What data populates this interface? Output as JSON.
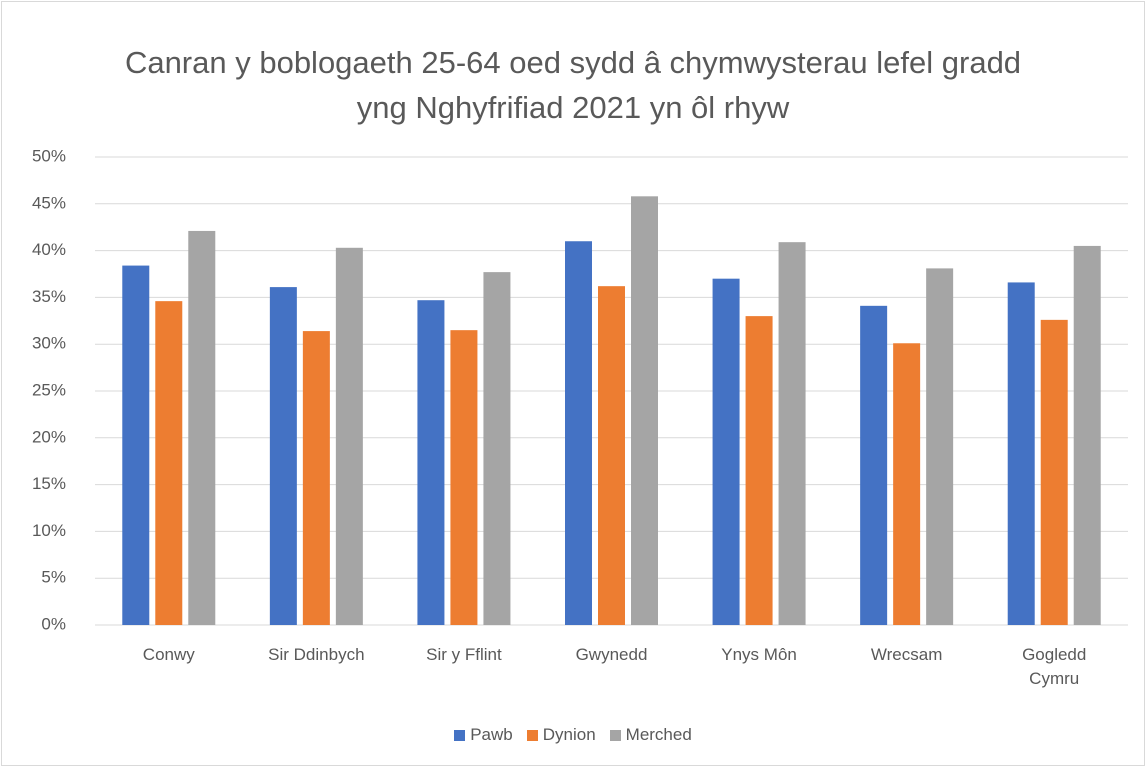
{
  "chart_data": {
    "type": "bar",
    "title": "Canran y boblogaeth 25-64 oed sydd â chymwysterau lefel gradd yng Nghyfrifiad 2021 yn ôl rhyw",
    "categories": [
      "Conwy",
      "Sir Ddinbych",
      "Sir y Fflint",
      "Gwynedd",
      "Ynys Môn",
      "Wrecsam",
      "Gogledd Cymru"
    ],
    "series": [
      {
        "name": "Pawb",
        "color": "#4472c4",
        "values": [
          38.4,
          36.1,
          34.7,
          41.0,
          37.0,
          34.1,
          36.6
        ]
      },
      {
        "name": "Dynion",
        "color": "#ed7d31",
        "values": [
          34.6,
          31.4,
          31.5,
          36.2,
          33.0,
          30.1,
          32.6
        ]
      },
      {
        "name": "Merched",
        "color": "#a5a5a5",
        "values": [
          42.1,
          40.3,
          37.7,
          45.8,
          40.9,
          38.1,
          40.5
        ]
      }
    ],
    "ylim": [
      0,
      50
    ],
    "yticks": [
      {
        "value": 0,
        "label": "0%"
      },
      {
        "value": 5,
        "label": "5%"
      },
      {
        "value": 10,
        "label": "10%"
      },
      {
        "value": 15,
        "label": "15%"
      },
      {
        "value": 20,
        "label": "20%"
      },
      {
        "value": 25,
        "label": "25%"
      },
      {
        "value": 30,
        "label": "30%"
      },
      {
        "value": 35,
        "label": "35%"
      },
      {
        "value": 40,
        "label": "40%"
      },
      {
        "value": 45,
        "label": "45%"
      },
      {
        "value": 50,
        "label": "50%"
      }
    ],
    "grid": true,
    "legend": "bottom"
  }
}
